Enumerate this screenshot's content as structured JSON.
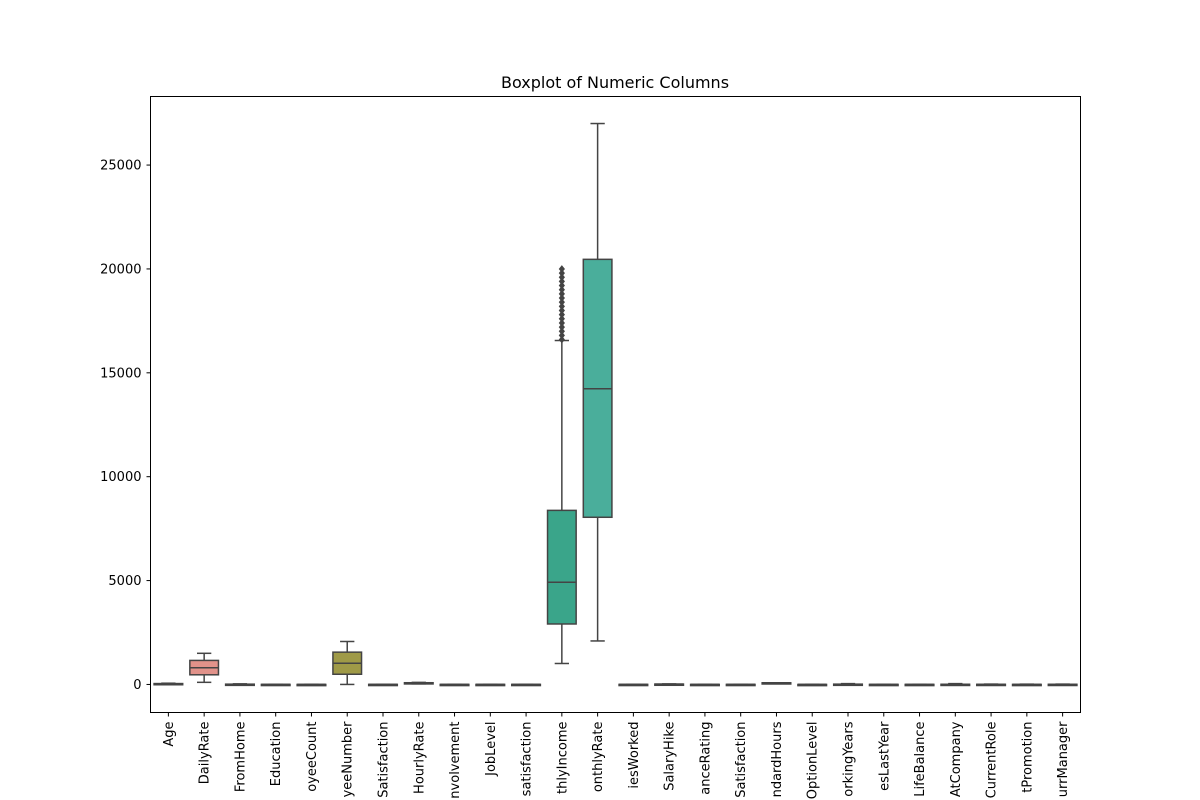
{
  "chart_data": {
    "type": "boxplot",
    "title": "Boxplot of Numeric Columns",
    "xlabel": "",
    "ylabel": "",
    "ylim": [
      -1350,
      28300
    ],
    "yticks": [
      0,
      5000,
      10000,
      15000,
      20000,
      25000
    ],
    "grid": false,
    "legend": "none",
    "categories": [
      "Age",
      "DailyRate",
      "FromHome",
      "Education",
      "oyeeCount",
      "yeeNumber",
      "Satisfaction",
      "HourlyRate",
      "nvolvement",
      "JobLevel",
      "satisfaction",
      "thlyIncome",
      "onthlyRate",
      "iesWorked",
      "SalaryHike",
      "anceRating",
      "Satisfaction",
      "ndardHours",
      "OptionLevel",
      "orkingYears",
      "esLastYear",
      "LifeBalance",
      "AtCompany",
      "CurrentRole",
      "tPromotion",
      "urrManager"
    ],
    "boxes": [
      {
        "whislo": 18,
        "q1": 30,
        "med": 36,
        "q3": 43,
        "whishi": 60,
        "fliers": [],
        "color": "#3274a1"
      },
      {
        "whislo": 102,
        "q1": 465,
        "med": 802,
        "q3": 1157,
        "whishi": 1499,
        "fliers": [],
        "color": "#e1928a"
      },
      {
        "whislo": 1,
        "q1": 2,
        "med": 7,
        "q3": 14,
        "whishi": 29,
        "fliers": [],
        "color": "#3a923a"
      },
      {
        "whislo": 1,
        "q1": 2,
        "med": 3,
        "q3": 4,
        "whishi": 5,
        "fliers": [],
        "color": "#c03d3e"
      },
      {
        "whislo": 1,
        "q1": 1,
        "med": 1,
        "q3": 1,
        "whishi": 1,
        "fliers": [],
        "color": "#9372b2"
      },
      {
        "whislo": 1,
        "q1": 491,
        "med": 1020,
        "q3": 1555,
        "whishi": 2068,
        "fliers": [],
        "color": "#9f9a47"
      },
      {
        "whislo": 1,
        "q1": 2,
        "med": 3,
        "q3": 4,
        "whishi": 4,
        "fliers": [],
        "color": "#d684bd"
      },
      {
        "whislo": 30,
        "q1": 48,
        "med": 66,
        "q3": 83,
        "whishi": 100,
        "fliers": [],
        "color": "#7f7f7f"
      },
      {
        "whislo": 1,
        "q1": 2,
        "med": 3,
        "q3": 3,
        "whishi": 4,
        "fliers": [],
        "color": "#a9aa35"
      },
      {
        "whislo": 1,
        "q1": 1,
        "med": 2,
        "q3": 3,
        "whishi": 5,
        "fliers": [],
        "color": "#3da3b7"
      },
      {
        "whislo": 1,
        "q1": 2,
        "med": 3,
        "q3": 4,
        "whishi": 4,
        "fliers": [],
        "color": "#3274a1"
      },
      {
        "whislo": 1009,
        "q1": 2911,
        "med": 4919,
        "q3": 8379,
        "whishi": 16555,
        "fliers": [
          16600,
          16800,
          17000,
          17200,
          17400,
          17600,
          17800,
          18000,
          18200,
          18400,
          18600,
          18800,
          19000,
          19200,
          19400,
          19600,
          19800,
          19999
        ],
        "color": "#3aa58a"
      },
      {
        "whislo": 2094,
        "q1": 8047,
        "med": 14236,
        "q3": 20462,
        "whishi": 26999,
        "fliers": [],
        "color": "#4aae9b"
      },
      {
        "whislo": 0,
        "q1": 1,
        "med": 2,
        "q3": 4,
        "whishi": 9,
        "fliers": [],
        "color": "#3274a1"
      },
      {
        "whislo": 11,
        "q1": 12,
        "med": 14,
        "q3": 18,
        "whishi": 25,
        "fliers": [],
        "color": "#e1928a"
      },
      {
        "whislo": 3,
        "q1": 3,
        "med": 3,
        "q3": 3,
        "whishi": 3,
        "fliers": [],
        "color": "#3a923a"
      },
      {
        "whislo": 1,
        "q1": 2,
        "med": 3,
        "q3": 4,
        "whishi": 4,
        "fliers": [],
        "color": "#c03d3e"
      },
      {
        "whislo": 80,
        "q1": 80,
        "med": 80,
        "q3": 80,
        "whishi": 80,
        "fliers": [],
        "color": "#9372b2"
      },
      {
        "whislo": 0,
        "q1": 0,
        "med": 1,
        "q3": 1,
        "whishi": 3,
        "fliers": [],
        "color": "#9f9a47"
      },
      {
        "whislo": 0,
        "q1": 6,
        "med": 10,
        "q3": 15,
        "whishi": 40,
        "fliers": [],
        "color": "#d684bd"
      },
      {
        "whislo": 0,
        "q1": 2,
        "med": 3,
        "q3": 3,
        "whishi": 6,
        "fliers": [],
        "color": "#7f7f7f"
      },
      {
        "whislo": 1,
        "q1": 2,
        "med": 3,
        "q3": 3,
        "whishi": 4,
        "fliers": [],
        "color": "#a9aa35"
      },
      {
        "whislo": 0,
        "q1": 3,
        "med": 5,
        "q3": 9,
        "whishi": 40,
        "fliers": [],
        "color": "#3da3b7"
      },
      {
        "whislo": 0,
        "q1": 2,
        "med": 3,
        "q3": 7,
        "whishi": 18,
        "fliers": [],
        "color": "#3274a1"
      },
      {
        "whislo": 0,
        "q1": 0,
        "med": 1,
        "q3": 3,
        "whishi": 15,
        "fliers": [],
        "color": "#e1928a"
      },
      {
        "whislo": 0,
        "q1": 2,
        "med": 3,
        "q3": 7,
        "whishi": 17,
        "fliers": [],
        "color": "#3a923a"
      }
    ]
  }
}
